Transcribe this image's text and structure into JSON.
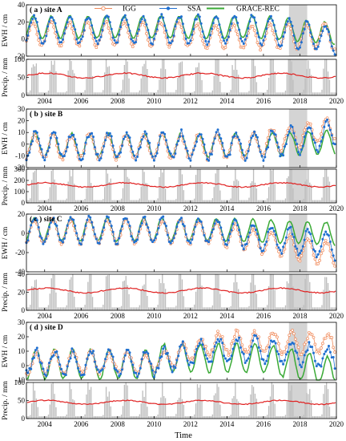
{
  "legend": [
    {
      "key": "igg",
      "label": "IGG",
      "color": "#f08a5a",
      "marker": "open-circle"
    },
    {
      "key": "ssa",
      "label": "SSA",
      "color": "#1f6fd0",
      "marker": "filled-dot"
    },
    {
      "key": "rec",
      "label": "GRACE-REC",
      "color": "#3aaa35",
      "marker": "line"
    }
  ],
  "colors": {
    "precip_bar": "#bdbdbd",
    "precip_line": "#e02020",
    "highlight": "#d4d4d4"
  },
  "xlabel": "Time",
  "x_ticks": [
    "2004",
    "2006",
    "2008",
    "2010",
    "2012",
    "2014",
    "2016",
    "2018",
    "2020"
  ],
  "highlight_period": [
    2017.4,
    2018.4
  ],
  "chart_data": [
    {
      "type": "line",
      "panel": "a",
      "site_label": "( a ) site A",
      "ylabel": "EWH / cm",
      "ylim": [
        -20,
        40
      ],
      "yticks": [
        "-20",
        "0",
        "20",
        "40"
      ],
      "x_range": [
        2003.0,
        2020.0
      ],
      "series": [
        {
          "name": "IGG",
          "description": "seasonal cycle, mean 8 cm, amplitude 14 cm"
        },
        {
          "name": "SSA",
          "description": "seasonal cycle, mean 12 cm, amplitude 16 cm, decreasing after 2016"
        },
        {
          "name": "GRACE-REC",
          "description": "seasonal cycle, mean 14 cm, amplitude 14 cm"
        }
      ],
      "precip": {
        "ylabel": "Precip. / mm",
        "ylim": [
          0,
          100
        ],
        "yticks": [
          "0",
          "50",
          "100"
        ],
        "mean_level": 55
      }
    },
    {
      "type": "line",
      "panel": "b",
      "site_label": "( b ) site B",
      "ylabel": "EWH / cm",
      "ylim": [
        -20,
        30
      ],
      "yticks": [
        "-20",
        "-10",
        "0",
        "10",
        "20",
        "30"
      ],
      "x_range": [
        2003.0,
        2020.0
      ],
      "series": [
        {
          "name": "IGG",
          "description": "seasonal cycle, rising trend after 2016 to about 15 cm"
        },
        {
          "name": "SSA",
          "description": "seasonal cycle, amplitude 12 cm, rising to about 10 cm by 2019"
        },
        {
          "name": "GRACE-REC",
          "description": "seasonal cycle, amplitude 10 cm, troughs near -10 cm after 2016"
        }
      ],
      "precip": {
        "ylabel": "Precip. / mm",
        "ylim": [
          0,
          300
        ],
        "yticks": [
          "0",
          "100",
          "200",
          "300"
        ],
        "mean_level": 160
      }
    },
    {
      "type": "line",
      "panel": "c",
      "site_label": "( c ) site C",
      "ylabel": "EWH / cm",
      "ylim": [
        -40,
        20
      ],
      "yticks": [
        "-40",
        "-20",
        "0",
        "20"
      ],
      "x_range": [
        2003.0,
        2020.0
      ],
      "series": [
        {
          "name": "IGG",
          "description": "seasonal cycle, declining trend to about -30 cm by 2019"
        },
        {
          "name": "SSA",
          "description": "seasonal cycle, declining trend to about -20 cm by 2019"
        },
        {
          "name": "GRACE-REC",
          "description": "seasonal cycle, amplitude 14 cm, peak near 20 cm in 2006"
        }
      ],
      "precip": {
        "ylabel": "Precip. / mm",
        "ylim": [
          0,
          40
        ],
        "yticks": [
          "0",
          "20",
          "40"
        ],
        "mean_level": 22
      }
    },
    {
      "type": "line",
      "panel": "d",
      "site_label": "( d ) site D",
      "ylabel": "EWH / cm",
      "ylim": [
        -10,
        30
      ],
      "yticks": [
        "-10",
        "0",
        "10",
        "20",
        "30"
      ],
      "x_range": [
        2003.0,
        2020.0
      ],
      "series": [
        {
          "name": "IGG",
          "description": "seasonal cycle, step up to about 18 cm after 2010"
        },
        {
          "name": "SSA",
          "description": "seasonal cycle, spike to 32 cm near 2017"
        },
        {
          "name": "GRACE-REC",
          "description": "seasonal cycle, amplitude 12 cm, troughs near -10 cm after 2017"
        }
      ],
      "precip": {
        "ylabel": "Precip. / mm",
        "ylim": [
          0,
          100
        ],
        "yticks": [
          "0",
          "50",
          "100"
        ],
        "mean_level": 45
      }
    }
  ]
}
